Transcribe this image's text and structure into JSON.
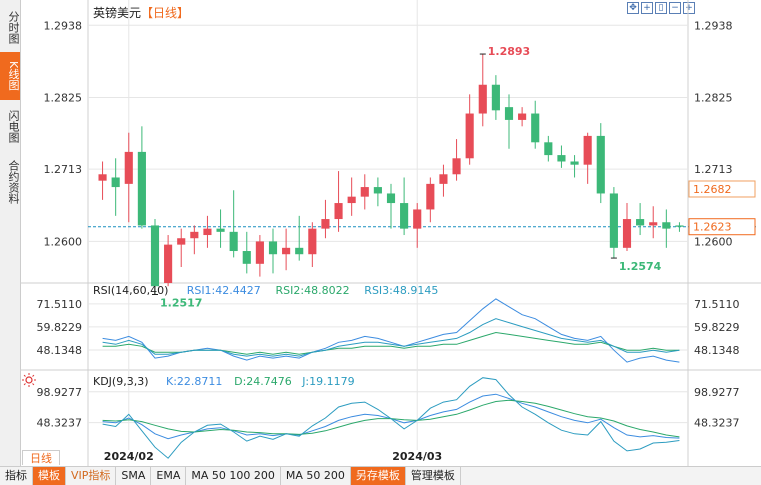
{
  "header": {
    "symbol": "英镑美元",
    "period": "【日线】"
  },
  "sidebar": {
    "tabs": [
      "分时图",
      "K线图",
      "闪电图",
      "合约资料"
    ],
    "active_index": 1
  },
  "toolbar": {
    "icons": [
      "move-icon",
      "crosshair-icon",
      "zoom-icon",
      "zoom-out-icon",
      "zoom-in-icon"
    ]
  },
  "period_tab": "日线",
  "bottom_bar": [
    "指标",
    "模板",
    "VIP指标",
    "SMA",
    "EMA",
    "MA 50 100 200",
    "MA 50 200",
    "另存模板",
    "管理模板"
  ],
  "colors": {
    "up": "#e74c57",
    "down": "#3cb878",
    "accent": "#f06a1e",
    "grid": "#e6e6e6",
    "current_price": "#1a8fbf"
  },
  "chart_data": {
    "type": "candlestick",
    "instrument": "英镑美元",
    "x_ticks": [
      "2024/02",
      "2024/03"
    ],
    "price_panel": {
      "y_ticks": [
        1.2938,
        1.2825,
        1.2713,
        1.26
      ],
      "ylim": [
        1.2535,
        1.2965
      ],
      "right_labels": {
        "latest": 1.2682,
        "current": 1.2623
      },
      "annotations": {
        "high": "1.2893",
        "low_1": "1.2517",
        "low_2": "1.2574"
      },
      "candles": [
        {
          "o": 1.2695,
          "h": 1.2725,
          "l": 1.2665,
          "c": 1.2705
        },
        {
          "o": 1.27,
          "h": 1.273,
          "l": 1.264,
          "c": 1.2685
        },
        {
          "o": 1.269,
          "h": 1.277,
          "l": 1.263,
          "c": 1.274
        },
        {
          "o": 1.274,
          "h": 1.278,
          "l": 1.262,
          "c": 1.2625
        },
        {
          "o": 1.2625,
          "h": 1.2635,
          "l": 1.2517,
          "c": 1.253
        },
        {
          "o": 1.2535,
          "h": 1.261,
          "l": 1.253,
          "c": 1.2595
        },
        {
          "o": 1.2595,
          "h": 1.262,
          "l": 1.256,
          "c": 1.2605
        },
        {
          "o": 1.2605,
          "h": 1.2625,
          "l": 1.258,
          "c": 1.2615
        },
        {
          "o": 1.261,
          "h": 1.264,
          "l": 1.259,
          "c": 1.262
        },
        {
          "o": 1.262,
          "h": 1.265,
          "l": 1.259,
          "c": 1.2615
        },
        {
          "o": 1.2615,
          "h": 1.268,
          "l": 1.2575,
          "c": 1.2585
        },
        {
          "o": 1.2585,
          "h": 1.2615,
          "l": 1.255,
          "c": 1.2565
        },
        {
          "o": 1.2565,
          "h": 1.261,
          "l": 1.2545,
          "c": 1.26
        },
        {
          "o": 1.26,
          "h": 1.262,
          "l": 1.255,
          "c": 1.258
        },
        {
          "o": 1.258,
          "h": 1.262,
          "l": 1.2555,
          "c": 1.259
        },
        {
          "o": 1.259,
          "h": 1.264,
          "l": 1.257,
          "c": 1.258
        },
        {
          "o": 1.258,
          "h": 1.263,
          "l": 1.256,
          "c": 1.262
        },
        {
          "o": 1.262,
          "h": 1.2665,
          "l": 1.2605,
          "c": 1.2635
        },
        {
          "o": 1.2635,
          "h": 1.271,
          "l": 1.2615,
          "c": 1.266
        },
        {
          "o": 1.266,
          "h": 1.27,
          "l": 1.264,
          "c": 1.267
        },
        {
          "o": 1.267,
          "h": 1.2705,
          "l": 1.265,
          "c": 1.2685
        },
        {
          "o": 1.2685,
          "h": 1.27,
          "l": 1.2655,
          "c": 1.2675
        },
        {
          "o": 1.2675,
          "h": 1.269,
          "l": 1.262,
          "c": 1.266
        },
        {
          "o": 1.266,
          "h": 1.27,
          "l": 1.261,
          "c": 1.262
        },
        {
          "o": 1.262,
          "h": 1.266,
          "l": 1.259,
          "c": 1.265
        },
        {
          "o": 1.265,
          "h": 1.27,
          "l": 1.263,
          "c": 1.269
        },
        {
          "o": 1.269,
          "h": 1.272,
          "l": 1.267,
          "c": 1.2705
        },
        {
          "o": 1.2705,
          "h": 1.276,
          "l": 1.2695,
          "c": 1.273
        },
        {
          "o": 1.273,
          "h": 1.283,
          "l": 1.272,
          "c": 1.28
        },
        {
          "o": 1.28,
          "h": 1.2893,
          "l": 1.278,
          "c": 1.2845
        },
        {
          "o": 1.2845,
          "h": 1.286,
          "l": 1.279,
          "c": 1.2805
        },
        {
          "o": 1.281,
          "h": 1.283,
          "l": 1.2745,
          "c": 1.279
        },
        {
          "o": 1.279,
          "h": 1.281,
          "l": 1.278,
          "c": 1.28
        },
        {
          "o": 1.28,
          "h": 1.282,
          "l": 1.2745,
          "c": 1.2755
        },
        {
          "o": 1.2755,
          "h": 1.2765,
          "l": 1.2725,
          "c": 1.2735
        },
        {
          "o": 1.2735,
          "h": 1.275,
          "l": 1.2715,
          "c": 1.2725
        },
        {
          "o": 1.2725,
          "h": 1.2735,
          "l": 1.27,
          "c": 1.272
        },
        {
          "o": 1.272,
          "h": 1.277,
          "l": 1.269,
          "c": 1.2765
        },
        {
          "o": 1.2765,
          "h": 1.2785,
          "l": 1.266,
          "c": 1.2675
        },
        {
          "o": 1.2675,
          "h": 1.2685,
          "l": 1.2574,
          "c": 1.259
        },
        {
          "o": 1.259,
          "h": 1.266,
          "l": 1.2585,
          "c": 1.2635
        },
        {
          "o": 1.2635,
          "h": 1.266,
          "l": 1.261,
          "c": 1.2625
        },
        {
          "o": 1.2625,
          "h": 1.2655,
          "l": 1.2605,
          "c": 1.263
        },
        {
          "o": 1.263,
          "h": 1.265,
          "l": 1.259,
          "c": 1.262
        },
        {
          "o": 1.2625,
          "h": 1.263,
          "l": 1.2615,
          "c": 1.2623
        }
      ]
    },
    "rsi_panel": {
      "label": "RSI(14,60,40)",
      "legend": [
        {
          "text": "RSI1:42.4427",
          "color": "#3c8ce0"
        },
        {
          "text": "RSI2:48.8022",
          "color": "#2ba86b"
        },
        {
          "text": "RSI3:48.9145",
          "color": "#2c9cc0"
        }
      ],
      "y_ticks": [
        71.511,
        59.8229,
        48.1348
      ],
      "y_tick_labels": [
        "71.5110",
        "59.8229",
        "48.1348"
      ],
      "ylim": [
        40,
        76
      ],
      "series": [
        {
          "name": "RSI1",
          "color": "#3c8ce0",
          "values": [
            54,
            53,
            55,
            52,
            44,
            45,
            47,
            48,
            49,
            48,
            45,
            43,
            45,
            44,
            45,
            44,
            47,
            49,
            52,
            53,
            55,
            54,
            52,
            50,
            52,
            54,
            56,
            57,
            63,
            69,
            74,
            70,
            66,
            64,
            60,
            56,
            54,
            53,
            55,
            48,
            42,
            44,
            45,
            43,
            42
          ]
        },
        {
          "name": "RSI2",
          "color": "#2ba86b",
          "values": [
            50,
            50,
            51,
            50,
            47,
            47,
            47,
            48,
            48,
            48,
            47,
            46,
            47,
            46,
            47,
            46,
            47,
            48,
            49,
            49,
            50,
            50,
            50,
            49,
            50,
            50,
            51,
            51,
            53,
            55,
            57,
            56,
            55,
            54,
            53,
            52,
            51,
            51,
            52,
            50,
            48,
            48,
            49,
            48,
            48
          ]
        },
        {
          "name": "RSI3",
          "color": "#2c9cc0",
          "values": [
            52,
            51,
            53,
            51,
            46,
            46,
            47,
            48,
            48,
            48,
            46,
            45,
            46,
            45,
            46,
            45,
            47,
            48,
            50,
            51,
            52,
            52,
            51,
            50,
            51,
            52,
            53,
            54,
            57,
            61,
            64,
            62,
            60,
            58,
            56,
            54,
            53,
            52,
            53,
            50,
            47,
            47,
            48,
            47,
            48
          ]
        }
      ]
    },
    "kdj_panel": {
      "label": "KDJ(9,3,3)",
      "legend": [
        {
          "text": "K:22.8711",
          "color": "#3c8ce0"
        },
        {
          "text": "D:24.7476",
          "color": "#2ba86b"
        },
        {
          "text": "J:19.1179",
          "color": "#2c9cc0"
        }
      ],
      "y_ticks": [
        98.9277,
        48.3237
      ],
      "ylim": [
        10,
        115
      ],
      "series": [
        {
          "name": "K",
          "color": "#3c8ce0",
          "values": [
            50,
            48,
            56,
            45,
            30,
            22,
            28,
            33,
            38,
            40,
            35,
            28,
            30,
            27,
            30,
            28,
            35,
            42,
            52,
            58,
            62,
            60,
            55,
            48,
            52,
            60,
            66,
            70,
            82,
            92,
            95,
            88,
            80,
            74,
            66,
            58,
            52,
            48,
            54,
            40,
            28,
            25,
            27,
            24,
            23
          ]
        },
        {
          "name": "D",
          "color": "#2ba86b",
          "values": [
            52,
            51,
            53,
            50,
            44,
            38,
            34,
            33,
            35,
            37,
            36,
            33,
            32,
            30,
            30,
            29,
            31,
            35,
            41,
            47,
            52,
            55,
            55,
            53,
            52,
            54,
            58,
            62,
            69,
            77,
            83,
            85,
            83,
            80,
            75,
            69,
            63,
            58,
            56,
            51,
            43,
            37,
            33,
            28,
            25
          ]
        },
        {
          "name": "J",
          "color": "#2c9cc0",
          "values": [
            46,
            42,
            62,
            35,
            8,
            -10,
            16,
            33,
            44,
            46,
            33,
            18,
            26,
            21,
            30,
            26,
            43,
            56,
            74,
            80,
            82,
            70,
            55,
            38,
            52,
            72,
            82,
            86,
            108,
            122,
            119,
            94,
            74,
            62,
            48,
            36,
            30,
            28,
            50,
            18,
            2,
            5,
            15,
            16,
            19
          ]
        }
      ]
    }
  }
}
